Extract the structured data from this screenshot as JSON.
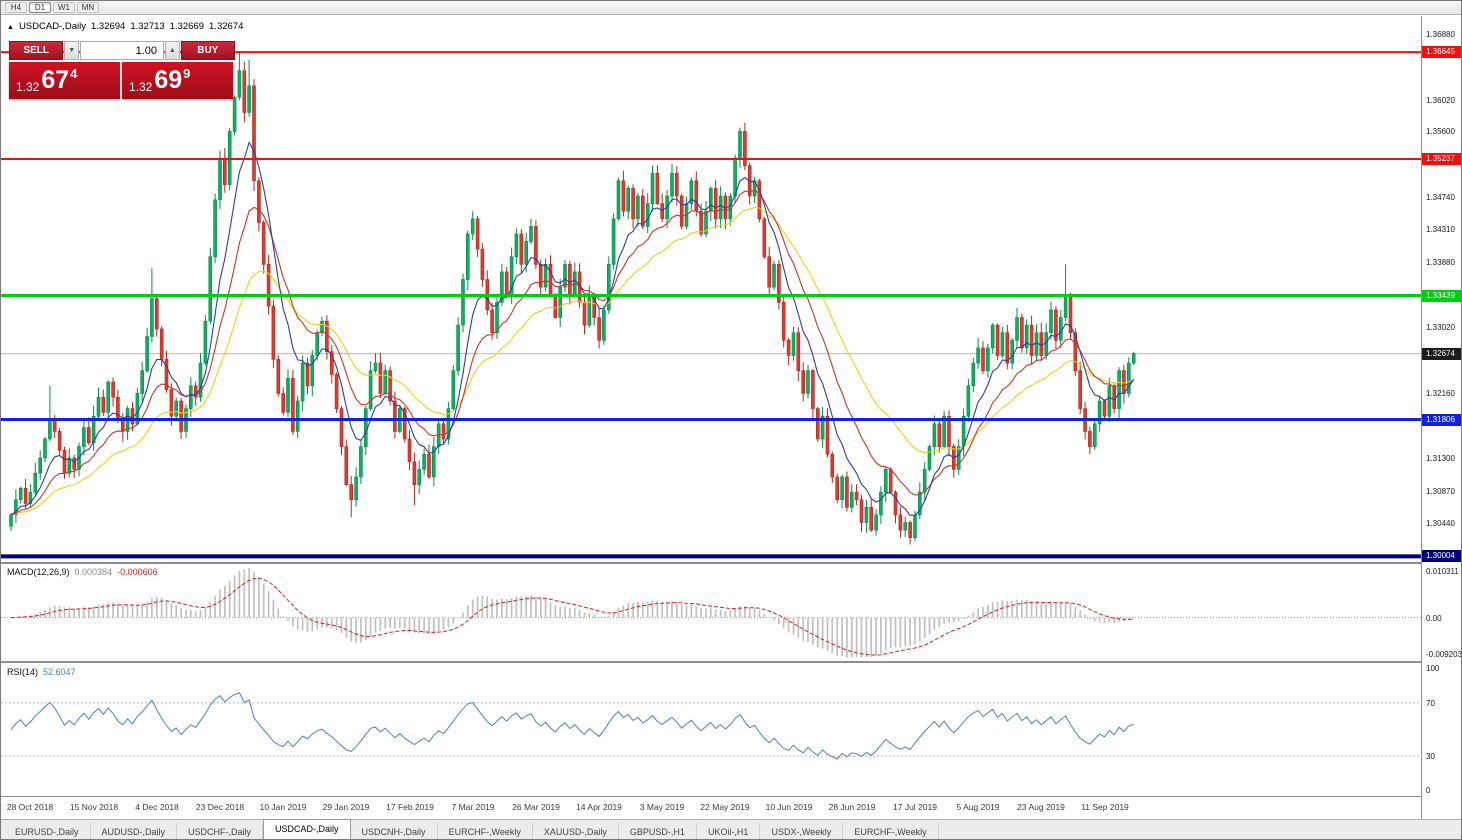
{
  "toolbar": {
    "timeframes": [
      "H4",
      "D1",
      "W1",
      "MN"
    ],
    "active": "D1"
  },
  "symbol_header": {
    "marker": "▲",
    "symbol": "USDCAD-,Daily",
    "open": "1.32694",
    "high": "1.32713",
    "low": "1.32669",
    "close": "1.32674"
  },
  "trade_panel": {
    "sell_label": "SELL",
    "buy_label": "BUY",
    "volume": "1.00",
    "sell_price": {
      "prefix": "1.32",
      "big": "67",
      "sup": "4"
    },
    "buy_price": {
      "prefix": "1.32",
      "big": "69",
      "sup": "9"
    }
  },
  "main_chart": {
    "range": {
      "min": 1.2993,
      "max": 1.3712
    },
    "price_ticks": [
      {
        "label": "1.36880",
        "price": 1.3688
      },
      {
        "label": "1.36020",
        "price": 1.3602
      },
      {
        "label": "1.35600",
        "price": 1.356
      },
      {
        "label": "1.34740",
        "price": 1.3474
      },
      {
        "label": "1.34310",
        "price": 1.3431
      },
      {
        "label": "1.33880",
        "price": 1.3388
      },
      {
        "label": "1.33020",
        "price": 1.3302
      },
      {
        "label": "1.32160",
        "price": 1.3216
      },
      {
        "label": "1.31300",
        "price": 1.313
      },
      {
        "label": "1.30870",
        "price": 1.3087
      },
      {
        "label": "1.30440",
        "price": 1.3044
      }
    ],
    "hlines": [
      {
        "label": "1.36645",
        "price": 1.36645,
        "color": "#ee1111",
        "width": 2
      },
      {
        "label": "1.35237",
        "price": 1.35237,
        "color": "#ee1111",
        "width": 2
      },
      {
        "label": "1.33439",
        "price": 1.33439,
        "color": "#00cc11",
        "width": 3
      },
      {
        "label": "1.31806",
        "price": 1.31806,
        "color": "#1122dd",
        "width": 3
      },
      {
        "label": "1.30004",
        "price": 1.30004,
        "color": "#000077",
        "width": 4
      }
    ],
    "current_price": {
      "label": "1.32674",
      "price": 1.32674
    }
  },
  "chart_data": {
    "type": "candlestick",
    "symbol": "USDCAD",
    "timeframe": "Daily",
    "first_open": 1.304,
    "closes": [
      1.3055,
      1.3075,
      1.309,
      1.307,
      1.3085,
      1.311,
      1.313,
      1.3155,
      1.318,
      1.3165,
      1.314,
      1.311,
      1.313,
      1.3115,
      1.3145,
      1.317,
      1.315,
      1.3185,
      1.321,
      1.319,
      1.323,
      1.321,
      1.318,
      1.3165,
      1.3195,
      1.3175,
      1.3215,
      1.3245,
      1.329,
      1.334,
      1.33,
      1.326,
      1.322,
      1.3185,
      1.3205,
      1.3165,
      1.3195,
      1.3225,
      1.321,
      1.3255,
      1.331,
      1.3395,
      1.347,
      1.3525,
      1.349,
      1.356,
      1.3605,
      1.364,
      1.3585,
      1.362,
      1.3495,
      1.344,
      1.3385,
      1.333,
      1.326,
      1.3215,
      1.319,
      1.3235,
      1.3165,
      1.3205,
      1.3255,
      1.3225,
      1.3265,
      1.3295,
      1.331,
      1.327,
      1.324,
      1.3195,
      1.3145,
      1.3095,
      1.3075,
      1.3105,
      1.3145,
      1.3195,
      1.3245,
      1.3255,
      1.3215,
      1.3245,
      1.3205,
      1.3165,
      1.3195,
      1.3155,
      1.3125,
      1.3095,
      1.3115,
      1.3135,
      1.3105,
      1.3145,
      1.3175,
      1.3155,
      1.3195,
      1.3245,
      1.3305,
      1.3365,
      1.3425,
      1.3445,
      1.3405,
      1.3365,
      1.3325,
      1.3295,
      1.3335,
      1.3375,
      1.3345,
      1.3395,
      1.3425,
      1.3385,
      1.3415,
      1.3435,
      1.3385,
      1.3355,
      1.3385,
      1.3345,
      1.3315,
      1.3355,
      1.3385,
      1.3345,
      1.3375,
      1.3335,
      1.3305,
      1.3345,
      1.3315,
      1.3285,
      1.3325,
      1.3385,
      1.3445,
      1.3495,
      1.3455,
      1.3485,
      1.3445,
      1.3475,
      1.3435,
      1.3465,
      1.3505,
      1.3465,
      1.3445,
      1.3475,
      1.3505,
      1.3475,
      1.3435,
      1.3465,
      1.3495,
      1.3455,
      1.3425,
      1.3455,
      1.3485,
      1.3445,
      1.3475,
      1.3445,
      1.3475,
      1.3525,
      1.356,
      1.3515,
      1.3475,
      1.3495,
      1.3445,
      1.3395,
      1.3355,
      1.3385,
      1.3335,
      1.3285,
      1.3265,
      1.3295,
      1.3245,
      1.3215,
      1.3245,
      1.3195,
      1.3155,
      1.3185,
      1.3135,
      1.3105,
      1.3075,
      1.3105,
      1.3065,
      1.3085,
      1.3075,
      1.3045,
      1.3065,
      1.3035,
      1.3055,
      1.3085,
      1.3115,
      1.3085,
      1.3055,
      1.3035,
      1.3045,
      1.3025,
      1.3055,
      1.3085,
      1.3115,
      1.3145,
      1.3175,
      1.3145,
      1.3185,
      1.3145,
      1.3115,
      1.3145,
      1.3185,
      1.3225,
      1.3255,
      1.3275,
      1.3245,
      1.3275,
      1.3305,
      1.3265,
      1.3295,
      1.3255,
      1.3285,
      1.3315,
      1.3275,
      1.3305,
      1.3265,
      1.3295,
      1.3265,
      1.3295,
      1.3325,
      1.3285,
      1.3315,
      1.3345,
      1.3295,
      1.3245,
      1.3195,
      1.3165,
      1.3145,
      1.3175,
      1.3205,
      1.3185,
      1.3225,
      1.3195,
      1.3245,
      1.3215,
      1.3255,
      1.32674
    ],
    "wick_overrides": {
      "8": {
        "high": 1.3225
      },
      "29": {
        "high": 1.338
      },
      "47": {
        "high": 1.36645
      },
      "49": {
        "high": 1.3654
      },
      "70": {
        "low": 1.3052
      },
      "83": {
        "low": 1.3068
      },
      "150": {
        "high": 1.3565
      },
      "183": {
        "low": 1.3025
      },
      "185": {
        "low": 1.3016
      },
      "217": {
        "high": 1.3385
      },
      "222": {
        "low": 1.3135
      }
    },
    "x_labels": [
      {
        "label": "28 Oct 2018",
        "i": 4
      },
      {
        "label": "15 Nov 2018",
        "i": 17
      },
      {
        "label": "4 Dec 2018",
        "i": 30
      },
      {
        "label": "23 Dec 2018",
        "i": 43
      },
      {
        "label": "10 Jan 2019",
        "i": 56
      },
      {
        "label": "29 Jan 2019",
        "i": 69
      },
      {
        "label": "17 Feb 2019",
        "i": 82
      },
      {
        "label": "7 Mar 2019",
        "i": 95
      },
      {
        "label": "26 Mar 2019",
        "i": 108
      },
      {
        "label": "14 Apr 2019",
        "i": 121
      },
      {
        "label": "3 May 2019",
        "i": 134
      },
      {
        "label": "22 May 2019",
        "i": 147
      },
      {
        "label": "10 Jun 2019",
        "i": 160
      },
      {
        "label": "28 Jun 2019",
        "i": 173
      },
      {
        "label": "17 Jul 2019",
        "i": 186
      },
      {
        "label": "5 Aug 2019",
        "i": 199
      },
      {
        "label": "23 Aug 2019",
        "i": 212
      },
      {
        "label": "11 Sep 2019",
        "i": 225
      }
    ],
    "moving_averages": [
      {
        "period": 30,
        "color": "#f0cf19"
      },
      {
        "period": 16,
        "color": "#c0392b"
      },
      {
        "period": 8,
        "color": "#2e3d9c"
      }
    ]
  },
  "macd_panel": {
    "title": "MACD(12,26,9)",
    "main_value": "0.000384",
    "signal_value": "-0.000606",
    "axis_top": "0.010311",
    "axis_zero": "0.00",
    "axis_bottom": "-0.009203"
  },
  "rsi_panel": {
    "title": "RSI(14)",
    "value": "52.6047",
    "levels": [
      {
        "label": "100",
        "value": 100
      },
      {
        "label": "70",
        "value": 70
      },
      {
        "label": "30",
        "value": 30
      },
      {
        "label": "0",
        "value": 0
      }
    ],
    "dotted": [
      70,
      30
    ]
  },
  "tabs": {
    "items": [
      "EURUSD-,Daily",
      "AUDUSD-,Daily",
      "USDCHF-,Daily",
      "USDCAD-,Daily",
      "USDCNH-,Daily",
      "EURCHF-,Weekly",
      "XAUUSD-,Daily",
      "GBPUSD-,H1",
      "UKOil-,H1",
      "USDX-,Weekly",
      "EURCHF-,Weekly"
    ],
    "active_index": 3
  },
  "colors": {
    "up": "#0fae62",
    "up_border": "#098a4c",
    "down": "#dc3b2f",
    "down_border": "#ab2a21",
    "macd_hist": "#c0c0c0",
    "macd_signal": "#cc2424",
    "rsi_line": "#4f81bd",
    "current_line": "#b8b8b8"
  }
}
